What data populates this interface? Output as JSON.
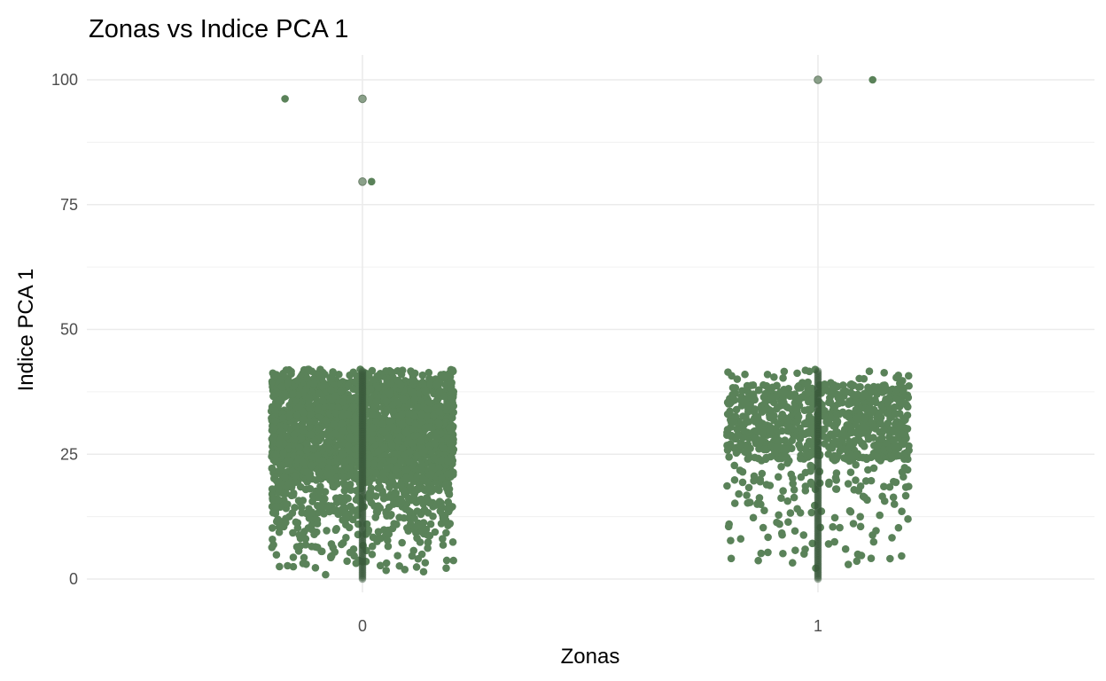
{
  "chart_data": {
    "type": "scatter",
    "title": "Zonas vs Indice PCA 1",
    "xlabel": "Zonas",
    "ylabel": "Indice PCA 1",
    "categories": [
      "0",
      "1"
    ],
    "x_tick_labels": [
      "0",
      "1"
    ],
    "y_ticks": [
      0,
      25,
      50,
      75,
      100
    ],
    "y_tick_labels": [
      "0",
      "25",
      "50",
      "75",
      "100"
    ],
    "ylim": [
      -2,
      103
    ],
    "grid": true,
    "jitter_width": 0.2,
    "point_color": "#5a8259",
    "overlay_color": "#3a5a3c",
    "groups": [
      {
        "zona": "0",
        "n_points_approx": 2600,
        "dense_range": [
          20,
          40
        ],
        "sparse_range": [
          0,
          20
        ],
        "max": 42,
        "outliers": [
          {
            "x_offset": -0.17,
            "y": 96.2
          },
          {
            "x_offset": 0,
            "y": 96.2
          },
          {
            "x_offset": 0,
            "y": 79.6
          },
          {
            "x_offset": 0.02,
            "y": 79.6
          }
        ]
      },
      {
        "zona": "1",
        "n_points_approx": 900,
        "dense_range": [
          24,
          39
        ],
        "sparse_range": [
          0,
          24
        ],
        "max": 42,
        "outliers": [
          {
            "x_offset": 0,
            "y": 100
          },
          {
            "x_offset": 0.12,
            "y": 100
          }
        ]
      }
    ]
  }
}
